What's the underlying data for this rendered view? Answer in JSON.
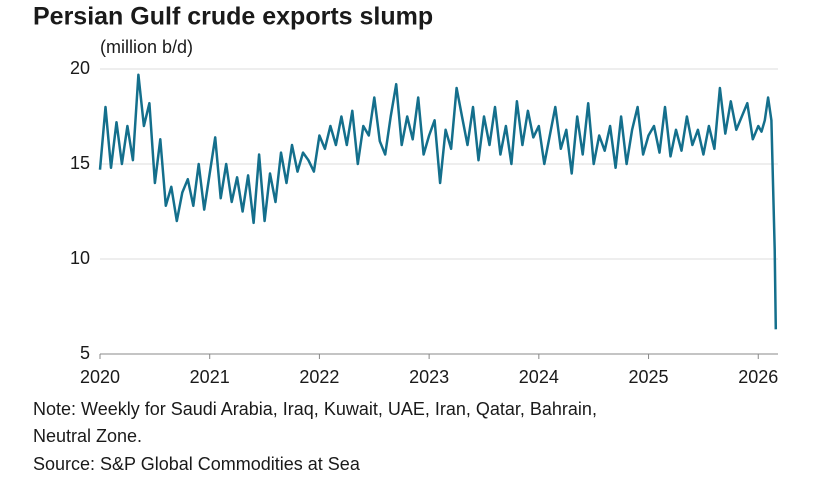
{
  "chart_data": {
    "type": "line",
    "title": "Persian Gulf crude exports slump",
    "ylabel": "(million b/d)",
    "notes": [
      "Note: Weekly for Saudi Arabia, Iraq, Kuwait, UAE, Iran, Qatar, Bahrain,",
      "Neutral Zone.",
      "Source: S&P Global Commodities at Sea"
    ],
    "xlim": [
      2020,
      2026.18
    ],
    "xticks": [
      2020,
      2021,
      2022,
      2023,
      2024,
      2025,
      2026
    ],
    "ylim": [
      5,
      20
    ],
    "yticks": [
      5,
      10,
      15,
      20
    ],
    "grid": true,
    "series": [
      {
        "color": "#146f8c",
        "x": [
          2020,
          2020.05,
          2020.1,
          2020.15,
          2020.2,
          2020.25,
          2020.3,
          2020.35,
          2020.4,
          2020.45,
          2020.5,
          2020.55,
          2020.6,
          2020.65,
          2020.7,
          2020.75,
          2020.8,
          2020.85,
          2020.9,
          2020.95,
          2021,
          2021.05,
          2021.1,
          2021.15,
          2021.2,
          2021.25,
          2021.3,
          2021.35,
          2021.4,
          2021.45,
          2021.5,
          2021.55,
          2021.6,
          2021.65,
          2021.7,
          2021.75,
          2021.8,
          2021.85,
          2021.9,
          2021.95,
          2022,
          2022.05,
          2022.1,
          2022.15,
          2022.2,
          2022.25,
          2022.3,
          2022.35,
          2022.4,
          2022.45,
          2022.5,
          2022.55,
          2022.6,
          2022.65,
          2022.7,
          2022.75,
          2022.8,
          2022.85,
          2022.9,
          2022.95,
          2023,
          2023.05,
          2023.1,
          2023.15,
          2023.2,
          2023.25,
          2023.3,
          2023.35,
          2023.4,
          2023.45,
          2023.5,
          2023.55,
          2023.6,
          2023.65,
          2023.7,
          2023.75,
          2023.8,
          2023.85,
          2023.9,
          2023.95,
          2024,
          2024.05,
          2024.1,
          2024.15,
          2024.2,
          2024.25,
          2024.3,
          2024.35,
          2024.4,
          2024.45,
          2024.5,
          2024.55,
          2024.6,
          2024.65,
          2024.7,
          2024.75,
          2024.8,
          2024.85,
          2024.9,
          2024.95,
          2025,
          2025.05,
          2025.1,
          2025.15,
          2025.2,
          2025.25,
          2025.3,
          2025.35,
          2025.4,
          2025.45,
          2025.5,
          2025.55,
          2025.6,
          2025.65,
          2025.7,
          2025.75,
          2025.8,
          2025.85,
          2025.9,
          2025.95,
          2026,
          2026.03,
          2026.06,
          2026.09,
          2026.12,
          2026.15,
          2026.16
        ],
        "values": [
          14.7,
          18,
          14.8,
          17.2,
          15,
          17,
          15.2,
          19.7,
          17,
          18.2,
          14,
          16.3,
          12.8,
          13.8,
          12,
          13.5,
          14.2,
          12.8,
          15,
          12.6,
          14.5,
          16.4,
          13.2,
          15,
          13,
          14.3,
          12.5,
          14.4,
          11.9,
          15.5,
          12,
          14.5,
          13,
          15.6,
          14,
          16,
          14.6,
          15.6,
          15.2,
          14.6,
          16.5,
          15.8,
          17,
          16,
          17.5,
          16,
          17.8,
          15,
          17,
          16.5,
          18.5,
          16.2,
          15.5,
          17.5,
          19.2,
          16,
          17.5,
          16.3,
          18.5,
          15.5,
          16.5,
          17.3,
          14,
          16.8,
          15.8,
          19,
          17.5,
          16,
          18,
          15.2,
          17.5,
          16,
          18,
          15.5,
          17,
          15,
          18.3,
          16,
          17.8,
          16.4,
          17,
          15,
          16.5,
          18,
          15.8,
          16.8,
          14.5,
          17.5,
          15.5,
          18.2,
          15,
          16.5,
          15.7,
          17,
          14.8,
          17.5,
          15,
          16.8,
          18,
          15.5,
          16.5,
          17,
          15.6,
          18,
          15.4,
          16.8,
          15.7,
          17.5,
          16,
          16.8,
          15.5,
          17,
          15.8,
          19,
          16.6,
          18.3,
          16.8,
          17.5,
          18.2,
          16.3,
          17,
          16.7,
          17.3,
          18.5,
          17.3,
          10.5,
          6.3
        ]
      }
    ]
  }
}
